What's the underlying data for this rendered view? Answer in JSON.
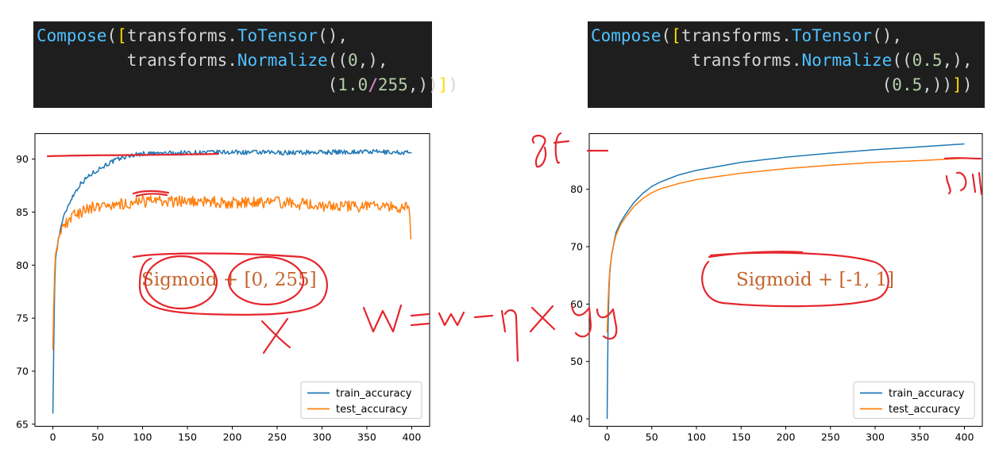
{
  "code_panels": [
    {
      "lines": [
        [
          [
            "fn",
            "Compose"
          ],
          [
            "p",
            "("
          ],
          [
            "br1",
            "["
          ],
          [
            "p",
            "transforms."
          ],
          [
            "fn",
            "ToTensor"
          ],
          [
            "p",
            "(),"
          ]
        ],
        [
          [
            "p",
            "         transforms."
          ],
          [
            "fn",
            "Normalize"
          ],
          [
            "p",
            "(("
          ],
          [
            "num",
            "0"
          ],
          [
            "p",
            ",),"
          ]
        ],
        [
          [
            "p",
            "                             ("
          ],
          [
            "num",
            "1.0"
          ],
          [
            "div",
            "/"
          ],
          [
            "num",
            "255"
          ],
          [
            "p",
            ",))"
          ],
          [
            "br1",
            "]"
          ],
          [
            "p",
            ")"
          ]
        ]
      ]
    },
    {
      "lines": [
        [
          [
            "fn",
            "Compose"
          ],
          [
            "p",
            "("
          ],
          [
            "br1",
            "["
          ],
          [
            "p",
            "transforms."
          ],
          [
            "fn",
            "ToTensor"
          ],
          [
            "p",
            "(),"
          ]
        ],
        [
          [
            "p",
            "          transforms."
          ],
          [
            "fn",
            "Normalize"
          ],
          [
            "p",
            "(("
          ],
          [
            "num",
            "0.5"
          ],
          [
            "p",
            ",),"
          ]
        ],
        [
          [
            "p",
            "                             ("
          ],
          [
            "num",
            "0.5"
          ],
          [
            "p",
            ",))"
          ],
          [
            "br1",
            "]"
          ],
          [
            "p",
            ")"
          ]
        ]
      ]
    }
  ],
  "chart_data": [
    {
      "type": "line",
      "x_range": [
        0,
        400
      ],
      "xlim": [
        -20,
        420
      ],
      "ylim": [
        64.8,
        92.4
      ],
      "x_ticks": [
        0,
        50,
        100,
        150,
        200,
        250,
        300,
        350,
        400
      ],
      "y_ticks": [
        65,
        70,
        75,
        80,
        85,
        90
      ],
      "legend_position": "lower-right",
      "annotation": "Sigmoid + [0, 255]",
      "series": [
        {
          "name": "train_accuracy",
          "color": "#1f77b4",
          "points": [
            [
              0,
              66.0
            ],
            [
              1,
              72.5
            ],
            [
              2,
              78.0
            ],
            [
              3,
              80.5
            ],
            [
              5,
              82.0
            ],
            [
              8,
              83.2
            ],
            [
              10,
              84.0
            ],
            [
              15,
              85.2
            ],
            [
              20,
              86.2
            ],
            [
              25,
              86.9
            ],
            [
              30,
              87.6
            ],
            [
              40,
              88.4
            ],
            [
              50,
              89.0
            ],
            [
              60,
              89.5
            ],
            [
              70,
              89.9
            ],
            [
              80,
              90.2
            ],
            [
              90,
              90.4
            ],
            [
              100,
              90.5
            ],
            [
              150,
              90.6
            ],
            [
              200,
              90.65
            ],
            [
              250,
              90.6
            ],
            [
              300,
              90.65
            ],
            [
              350,
              90.7
            ],
            [
              399,
              90.6
            ]
          ],
          "noise": 0.22
        },
        {
          "name": "test_accuracy",
          "color": "#ff7f0e",
          "points": [
            [
              0,
              72.0
            ],
            [
              1,
              76.5
            ],
            [
              2,
              79.5
            ],
            [
              3,
              81.0
            ],
            [
              5,
              82.0
            ],
            [
              8,
              82.8
            ],
            [
              10,
              83.3
            ],
            [
              15,
              84.0
            ],
            [
              20,
              84.5
            ],
            [
              30,
              85.0
            ],
            [
              50,
              85.6
            ],
            [
              80,
              85.8
            ],
            [
              100,
              86.0
            ],
            [
              150,
              86.0
            ],
            [
              200,
              85.9
            ],
            [
              250,
              85.9
            ],
            [
              300,
              85.6
            ],
            [
              350,
              85.5
            ],
            [
              397,
              85.4
            ],
            [
              398,
              84.5
            ],
            [
              399,
              82.5
            ]
          ],
          "noise": 0.55
        }
      ]
    },
    {
      "type": "line",
      "x_range": [
        0,
        400
      ],
      "xlim": [
        -20,
        420
      ],
      "ylim": [
        38.7,
        89.7
      ],
      "x_ticks": [
        0,
        50,
        100,
        150,
        200,
        250,
        300,
        350,
        400
      ],
      "y_ticks": [
        40,
        50,
        60,
        70,
        80
      ],
      "legend_position": "lower-right",
      "annotation": "Sigmoid + [-1, 1]",
      "series": [
        {
          "name": "train_accuracy",
          "color": "#1f77b4",
          "points": [
            [
              0,
              40.0
            ],
            [
              1,
              55.0
            ],
            [
              2,
              62.0
            ],
            [
              3,
              65.5
            ],
            [
              5,
              68.5
            ],
            [
              8,
              71.0
            ],
            [
              10,
              72.5
            ],
            [
              15,
              74.2
            ],
            [
              20,
              75.5
            ],
            [
              30,
              77.7
            ],
            [
              40,
              79.3
            ],
            [
              50,
              80.5
            ],
            [
              60,
              81.3
            ],
            [
              80,
              82.5
            ],
            [
              100,
              83.3
            ],
            [
              150,
              84.7
            ],
            [
              200,
              85.6
            ],
            [
              250,
              86.3
            ],
            [
              300,
              86.9
            ],
            [
              350,
              87.4
            ],
            [
              399,
              87.9
            ]
          ]
        },
        {
          "name": "test_accuracy",
          "color": "#ff7f0e",
          "points": [
            [
              0,
              55.0
            ],
            [
              1,
              60.0
            ],
            [
              2,
              63.5
            ],
            [
              3,
              66.0
            ],
            [
              5,
              68.5
            ],
            [
              8,
              70.8
            ],
            [
              10,
              72.0
            ],
            [
              15,
              73.8
            ],
            [
              20,
              75.0
            ],
            [
              30,
              77.0
            ],
            [
              40,
              78.4
            ],
            [
              50,
              79.4
            ],
            [
              60,
              80.1
            ],
            [
              80,
              81.0
            ],
            [
              100,
              81.7
            ],
            [
              150,
              82.8
            ],
            [
              200,
              83.6
            ],
            [
              250,
              84.2
            ],
            [
              300,
              84.7
            ],
            [
              350,
              85.0
            ],
            [
              399,
              85.4
            ]
          ]
        }
      ]
    }
  ],
  "handwriting": {
    "formula": "W=w-ηxy",
    "left_train_mark": "90",
    "right_train_mark": "88",
    "right_test_mark": "85"
  }
}
